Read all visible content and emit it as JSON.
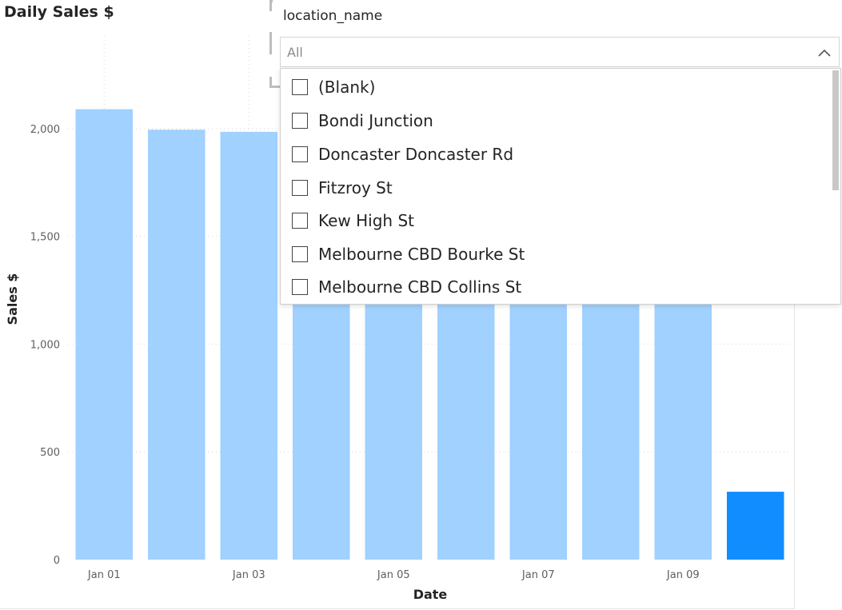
{
  "chart_data": {
    "type": "bar",
    "title": "Daily Sales $",
    "xlabel": "Date",
    "ylabel": "Sales $",
    "categories": [
      "Jan 01",
      "Jan 02",
      "Jan 03",
      "Jan 04",
      "Jan 05",
      "Jan 06",
      "Jan 07",
      "Jan 08",
      "Jan 09",
      "Jan 10"
    ],
    "x_tick_labels": [
      "Jan 01",
      "Jan 03",
      "Jan 05",
      "Jan 07",
      "Jan 09"
    ],
    "values": [
      2090,
      1995,
      1985,
      1590,
      1600,
      1580,
      1610,
      1590,
      1600,
      315
    ],
    "highlighted_index": 9,
    "ylim": [
      0,
      2300
    ],
    "y_ticks": [
      0,
      500,
      1000,
      1500,
      2000
    ],
    "y_tick_labels": [
      "0",
      "500",
      "1,000",
      "1,500",
      "2,000"
    ],
    "grid": true,
    "colors": {
      "bar": "#a0d1ff",
      "highlight": "#118dff",
      "grid": "#d9d9d9"
    }
  },
  "slicer": {
    "header": "location_name",
    "selected": "All",
    "options": [
      "(Blank)",
      "Bondi Junction",
      "Doncaster Doncaster Rd",
      "Fitzroy St",
      "Kew High St",
      "Melbourne CBD Bourke St",
      "Melbourne CBD Collins St"
    ],
    "chevron_icon": "chevron-up-icon"
  }
}
